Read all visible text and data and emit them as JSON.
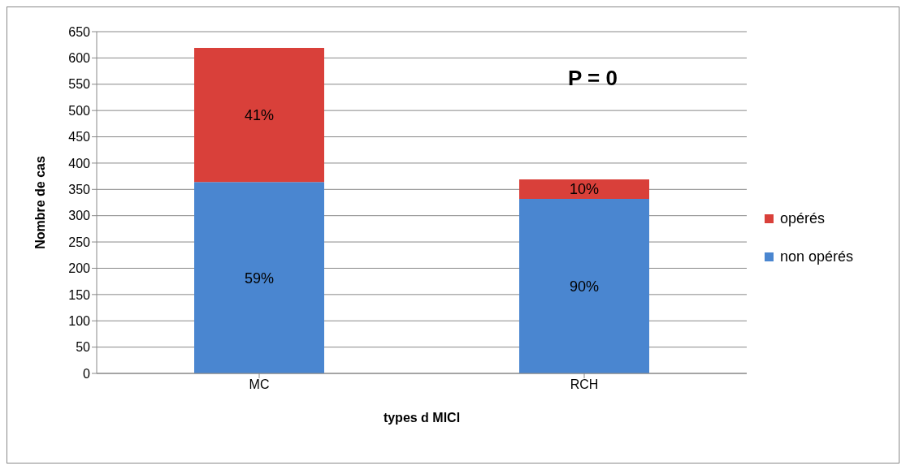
{
  "chart_data": {
    "type": "bar",
    "stacked": true,
    "xlabel": "types d MICI",
    "ylabel": "Nombre de cas",
    "categories": [
      "MC",
      "RCH"
    ],
    "series": [
      {
        "name": "non opérés",
        "color": "#4a86d0",
        "values": [
          364,
          332
        ]
      },
      {
        "name": "opérés",
        "color": "#d9403a",
        "values": [
          255,
          37
        ]
      }
    ],
    "ylim": [
      0,
      650
    ],
    "yticks": [
      0,
      50,
      100,
      150,
      200,
      250,
      300,
      350,
      400,
      450,
      500,
      550,
      600,
      650
    ],
    "grid": "y",
    "legend": "right",
    "annotations": [
      "P = 0",
      "59%",
      "41%",
      "90%",
      "10%"
    ]
  }
}
